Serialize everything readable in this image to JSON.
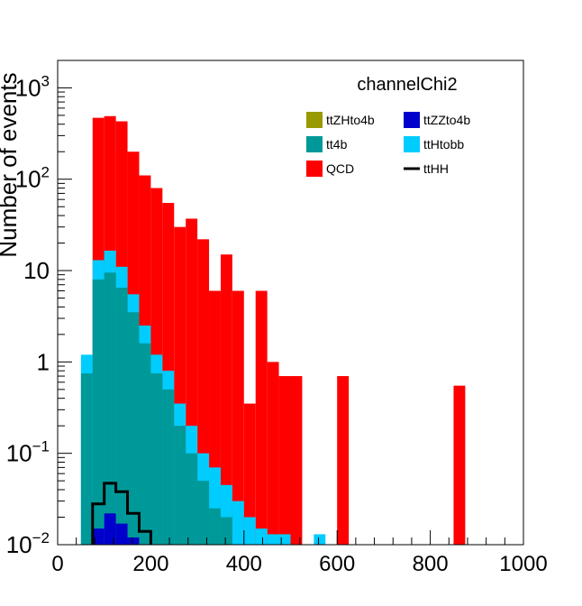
{
  "chart_data": {
    "type": "bar",
    "stacked": true,
    "title": "channelChi2",
    "ylabel": "Number of events",
    "xlabel": "",
    "log_y": true,
    "xlim": [
      0,
      1000
    ],
    "ylim_exponents": [
      -2,
      3.3
    ],
    "x_tick_labels": [
      "0",
      "200",
      "400",
      "600",
      "800",
      "1000"
    ],
    "x_tick_values": [
      0,
      200,
      400,
      600,
      800,
      1000
    ],
    "y_tick_labels": [
      {
        "value": 0.01,
        "base": "10",
        "exp": "−2"
      },
      {
        "value": 0.1,
        "base": "10",
        "exp": "−1"
      },
      {
        "value": 1,
        "base": "1",
        "exp": ""
      },
      {
        "value": 10,
        "base": "10",
        "exp": ""
      },
      {
        "value": 100,
        "base": "10",
        "exp": "2"
      },
      {
        "value": 1000,
        "base": "10",
        "exp": "3"
      }
    ],
    "bin_edges_start": 50,
    "bin_width": 25,
    "stacked_cumulative": {
      "tt4b": [
        0.75,
        8.0,
        9.5,
        6.5,
        3.5,
        1.6,
        0.75,
        0.5,
        0.2,
        0.1,
        0.05,
        0.025,
        0.02,
        0.01,
        0.005,
        0.0,
        0.0,
        0.0,
        0.0,
        0.0
      ],
      "ttHtobb": [
        1.2,
        13.0,
        16.5,
        11.0,
        5.5,
        2.5,
        1.2,
        0.8,
        0.35,
        0.2,
        0.1,
        0.07,
        0.045,
        0.03,
        0.02,
        0.015,
        0.0,
        0.0,
        0.0,
        0.0
      ],
      "QCD": [
        null,
        470,
        490,
        430,
        200,
        110,
        80,
        55,
        30,
        37,
        22,
        6,
        15,
        6,
        0.35,
        6,
        1.0,
        null,
        0.7,
        null
      ],
      "ttZZto4b": [
        null,
        0.015,
        0.022,
        0.017,
        0.012,
        null,
        null,
        null,
        null,
        null,
        null,
        null,
        null,
        null,
        null,
        null,
        null,
        null,
        null,
        null
      ]
    },
    "qcd_isolated": [
      {
        "x_low": 475,
        "x_high": 500,
        "value": 0.7
      },
      {
        "x_low": 600,
        "x_high": 625,
        "value": 0.7
      },
      {
        "x_low": 850,
        "x_high": 875,
        "value": 0.55
      }
    ],
    "ttHtobb_extra": [
      {
        "x_low": 450,
        "x_high": 500,
        "value": 0.013
      },
      {
        "x_low": 550,
        "x_high": 575,
        "value": 0.013
      }
    ],
    "ttHH_outline": [
      {
        "x_low": 75,
        "x_high": 100,
        "value": 0.028
      },
      {
        "x_low": 100,
        "x_high": 125,
        "value": 0.047
      },
      {
        "x_low": 125,
        "x_high": 150,
        "value": 0.038
      },
      {
        "x_low": 150,
        "x_high": 175,
        "value": 0.022
      },
      {
        "x_low": 175,
        "x_high": 200,
        "value": 0.014
      }
    ],
    "legend": [
      {
        "label": "ttZHto4b",
        "color": "#999900",
        "kind": "box"
      },
      {
        "label": "ttZZto4b",
        "color": "#0000cc",
        "kind": "box"
      },
      {
        "label": "tt4b",
        "color": "#009999",
        "kind": "box"
      },
      {
        "label": "ttHtobb",
        "color": "#00ccff",
        "kind": "box"
      },
      {
        "label": "QCD",
        "color": "#ff0000",
        "kind": "box"
      },
      {
        "label": "ttHH",
        "color": "#000000",
        "kind": "line"
      }
    ],
    "colors": {
      "QCD": "#ff0000",
      "ttHtobb": "#00ccff",
      "tt4b": "#009999",
      "ttZZto4b": "#0000cc",
      "ttZHto4b": "#999900",
      "ttHH": "#000000"
    }
  }
}
